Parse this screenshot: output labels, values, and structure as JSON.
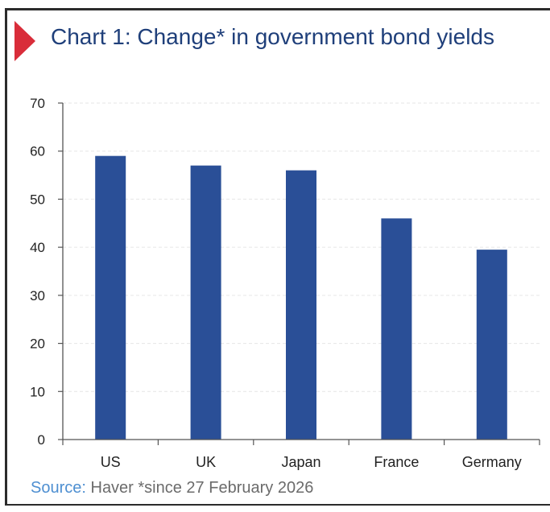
{
  "source": {
    "label": "Source:",
    "text": " Haver *since 27 February 2026"
  },
  "chart_data": {
    "type": "bar",
    "title": "Chart 1: Change* in government bond yields",
    "categories": [
      "US",
      "UK",
      "Japan",
      "France",
      "Germany"
    ],
    "values": [
      59,
      57,
      56,
      46,
      39.5
    ],
    "ylim": [
      0,
      70
    ],
    "yticks": [
      0,
      10,
      20,
      30,
      40,
      50,
      60,
      70
    ],
    "xlabel": "",
    "ylabel": "",
    "grid": true,
    "colors": {
      "bar": "#2a4f97",
      "grid": "#e6e6e6",
      "axis": "#555555",
      "title": "#1f3f7a",
      "marker": "#d92d3a",
      "source_label": "#4e8fd1",
      "source_text": "#6b6b6b"
    }
  }
}
